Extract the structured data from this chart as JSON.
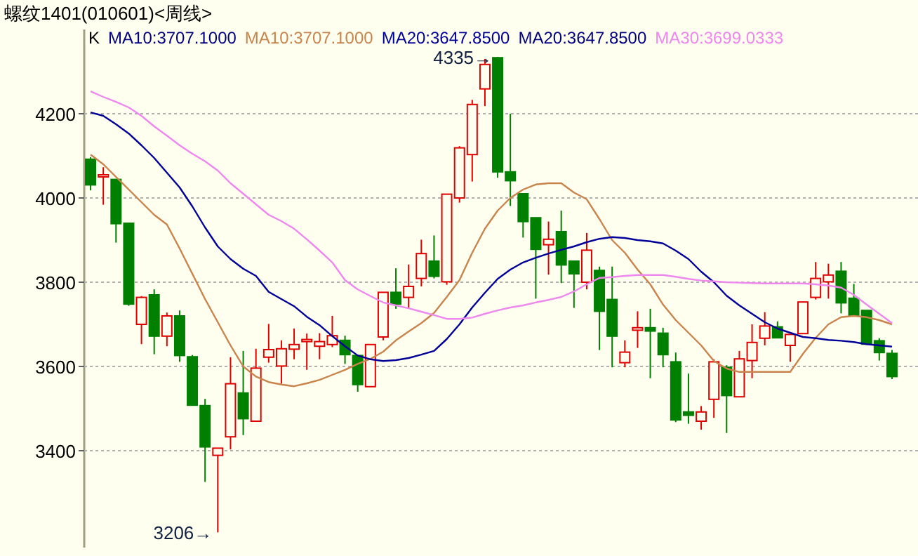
{
  "chart_data": {
    "type": "candlestick",
    "title": "螺纹1401(010601)<周线>",
    "legend_title": "K",
    "legend": "top left",
    "grid": "y",
    "categories": [
      null,
      null,
      null,
      null,
      null,
      null,
      null,
      null,
      null,
      null,
      null,
      null,
      null,
      null,
      null,
      null,
      null,
      null,
      null,
      null,
      null,
      null,
      null,
      null,
      null,
      null,
      null,
      null,
      null,
      null,
      null,
      null,
      null,
      null,
      null,
      null,
      null,
      null,
      null,
      null,
      null,
      null,
      null,
      null,
      null,
      null,
      null,
      null,
      null,
      null,
      null,
      null,
      null,
      null,
      null,
      null,
      null,
      null,
      null,
      null,
      null,
      null,
      null,
      null
    ],
    "ylim": [
      3170,
      4400
    ],
    "yticks": [
      3400,
      3600,
      3800,
      4000,
      4200
    ],
    "ohlc": [
      [
        4092,
        4097,
        4018,
        4031
      ],
      [
        4050,
        4073,
        3984,
        4055
      ],
      [
        4044,
        4044,
        3894,
        3939
      ],
      [
        3940,
        3940,
        3744,
        3748
      ],
      [
        3700,
        3767,
        3653,
        3764
      ],
      [
        3770,
        3783,
        3629,
        3672
      ],
      [
        3672,
        3728,
        3648,
        3720
      ],
      [
        3720,
        3733,
        3611,
        3626
      ],
      [
        3623,
        3627,
        3508,
        3508
      ],
      [
        3507,
        3523,
        3326,
        3409
      ],
      [
        3389,
        3406,
        3206,
        3406
      ],
      [
        3433,
        3622,
        3403,
        3559
      ],
      [
        3537,
        3637,
        3437,
        3476
      ],
      [
        3470,
        3642,
        3470,
        3596
      ],
      [
        3622,
        3701,
        3609,
        3640
      ],
      [
        3601,
        3662,
        3559,
        3642
      ],
      [
        3641,
        3690,
        3617,
        3652
      ],
      [
        3659,
        3678,
        3592,
        3664
      ],
      [
        3648,
        3679,
        3617,
        3659
      ],
      [
        3652,
        3720,
        3646,
        3673
      ],
      [
        3662,
        3673,
        3606,
        3628
      ],
      [
        3626,
        3626,
        3540,
        3557
      ],
      [
        3552,
        3652,
        3552,
        3652
      ],
      [
        3670,
        3776,
        3662,
        3776
      ],
      [
        3776,
        3833,
        3737,
        3748
      ],
      [
        3764,
        3842,
        3739,
        3790
      ],
      [
        3809,
        3901,
        3790,
        3868
      ],
      [
        3850,
        3911,
        3809,
        3814
      ],
      [
        3801,
        4009,
        3794,
        4009
      ],
      [
        4000,
        4123,
        3989,
        4119
      ],
      [
        4103,
        4233,
        4039,
        4222
      ],
      [
        4259,
        4330,
        4218,
        4317
      ],
      [
        4333,
        4335,
        4048,
        4062
      ],
      [
        4062,
        4200,
        3981,
        4041
      ],
      [
        4010,
        4010,
        3906,
        3944
      ],
      [
        3953,
        3953,
        3761,
        3878
      ],
      [
        3889,
        3944,
        3818,
        3902
      ],
      [
        3920,
        3970,
        3798,
        3841
      ],
      [
        3850,
        3850,
        3739,
        3820
      ],
      [
        3800,
        3917,
        3783,
        3876
      ],
      [
        3828,
        3837,
        3639,
        3731
      ],
      [
        3759,
        3837,
        3598,
        3672
      ],
      [
        3609,
        3662,
        3598,
        3634
      ],
      [
        3686,
        3731,
        3644,
        3692
      ],
      [
        3692,
        3737,
        3572,
        3684
      ],
      [
        3679,
        3692,
        3598,
        3628
      ],
      [
        3611,
        3633,
        3468,
        3473
      ],
      [
        3492,
        3583,
        3464,
        3484
      ],
      [
        3470,
        3506,
        3450,
        3492
      ],
      [
        3522,
        3617,
        3478,
        3611
      ],
      [
        3598,
        3603,
        3442,
        3531
      ],
      [
        3528,
        3637,
        3527,
        3618
      ],
      [
        3614,
        3700,
        3572,
        3657
      ],
      [
        3667,
        3729,
        3650,
        3696
      ],
      [
        3694,
        3707,
        3668,
        3668
      ],
      [
        3650,
        3676,
        3611,
        3676
      ],
      [
        3678,
        3753,
        3678,
        3753
      ],
      [
        3764,
        3848,
        3759,
        3809
      ],
      [
        3801,
        3844,
        3761,
        3817
      ],
      [
        3826,
        3848,
        3726,
        3751
      ],
      [
        3762,
        3796,
        3720,
        3720
      ],
      [
        3733,
        3733,
        3653,
        3653
      ],
      [
        3661,
        3667,
        3614,
        3633
      ],
      [
        3631,
        3639,
        3570,
        3576
      ]
    ],
    "colors": [
      "#008000",
      "#e00000",
      "#008000",
      "#008000",
      "#e00000",
      "#008000",
      "#e00000",
      "#008000",
      "#008000",
      "#008000",
      "#e00000",
      "#e00000",
      "#008000",
      "#e00000",
      "#e00000",
      "#e00000",
      "#e00000",
      "#e00000",
      "#e00000",
      "#e00000",
      "#008000",
      "#008000",
      "#e00000",
      "#e00000",
      "#008000",
      "#e00000",
      "#e00000",
      "#008000",
      "#e00000",
      "#e00000",
      "#e00000",
      "#e00000",
      "#008000",
      "#008000",
      "#008000",
      "#008000",
      "#e00000",
      "#008000",
      "#008000",
      "#e00000",
      "#008000",
      "#008000",
      "#e00000",
      "#e00000",
      "#008000",
      "#008000",
      "#008000",
      "#008000",
      "#e00000",
      "#e00000",
      "#008000",
      "#e00000",
      "#e00000",
      "#e00000",
      "#008000",
      "#e00000",
      "#e00000",
      "#e00000",
      "#e00000",
      "#008000",
      "#008000",
      "#008000",
      "#008000",
      "#008000"
    ],
    "series": [
      {
        "type": "line",
        "name": "MA10:3707.1000",
        "color": "#c8844c",
        "values": [
          4103,
          4080,
          4050,
          4020,
          3990,
          3960,
          3937,
          3880,
          3820,
          3760,
          3705,
          3650,
          3600,
          3576,
          3563,
          3557,
          3553,
          3560,
          3568,
          3580,
          3592,
          3606,
          3618,
          3635,
          3662,
          3683,
          3703,
          3727,
          3765,
          3805,
          3870,
          3927,
          3970,
          4000,
          4020,
          4032,
          4035,
          4035,
          4013,
          3997,
          3950,
          3900,
          3870,
          3830,
          3795,
          3747,
          3710,
          3680,
          3650,
          3613,
          3595,
          3587,
          3587,
          3587,
          3587,
          3587,
          3630,
          3668,
          3700,
          3717,
          3720,
          3717,
          3710,
          3700
        ]
      },
      {
        "type": "line",
        "name": "MA20:3647.8500",
        "color": "#000099",
        "values": [
          4203,
          4195,
          4175,
          4153,
          4125,
          4095,
          4060,
          4025,
          3980,
          3930,
          3885,
          3855,
          3832,
          3815,
          3777,
          3760,
          3743,
          3718,
          3698,
          3672,
          3648,
          3626,
          3617,
          3613,
          3615,
          3620,
          3628,
          3637,
          3665,
          3700,
          3740,
          3775,
          3808,
          3830,
          3847,
          3858,
          3868,
          3877,
          3885,
          3895,
          3903,
          3907,
          3905,
          3900,
          3897,
          3892,
          3875,
          3855,
          3825,
          3800,
          3768,
          3745,
          3725,
          3705,
          3690,
          3680,
          3670,
          3667,
          3663,
          3661,
          3658,
          3653,
          3650,
          3647
        ]
      },
      {
        "type": "line",
        "name": "MA30:3699.0333",
        "color": "#ee88ee",
        "values": [
          4253,
          4240,
          4228,
          4215,
          4195,
          4170,
          4148,
          4125,
          4105,
          4087,
          4065,
          4035,
          4010,
          3985,
          3960,
          3945,
          3927,
          3902,
          3875,
          3847,
          3805,
          3783,
          3767,
          3752,
          3745,
          3738,
          3730,
          3722,
          3713,
          3713,
          3716,
          3725,
          3733,
          3740,
          3745,
          3752,
          3758,
          3765,
          3778,
          3795,
          3810,
          3812,
          3815,
          3817,
          3817,
          3817,
          3813,
          3808,
          3804,
          3802,
          3800,
          3799,
          3798,
          3797,
          3797,
          3797,
          3797,
          3795,
          3792,
          3787,
          3770,
          3747,
          3725,
          3703
        ]
      }
    ],
    "annotations": [
      "MA10:3707.1000",
      "MA20:3647.8500",
      "4335→",
      "3206→"
    ]
  }
}
